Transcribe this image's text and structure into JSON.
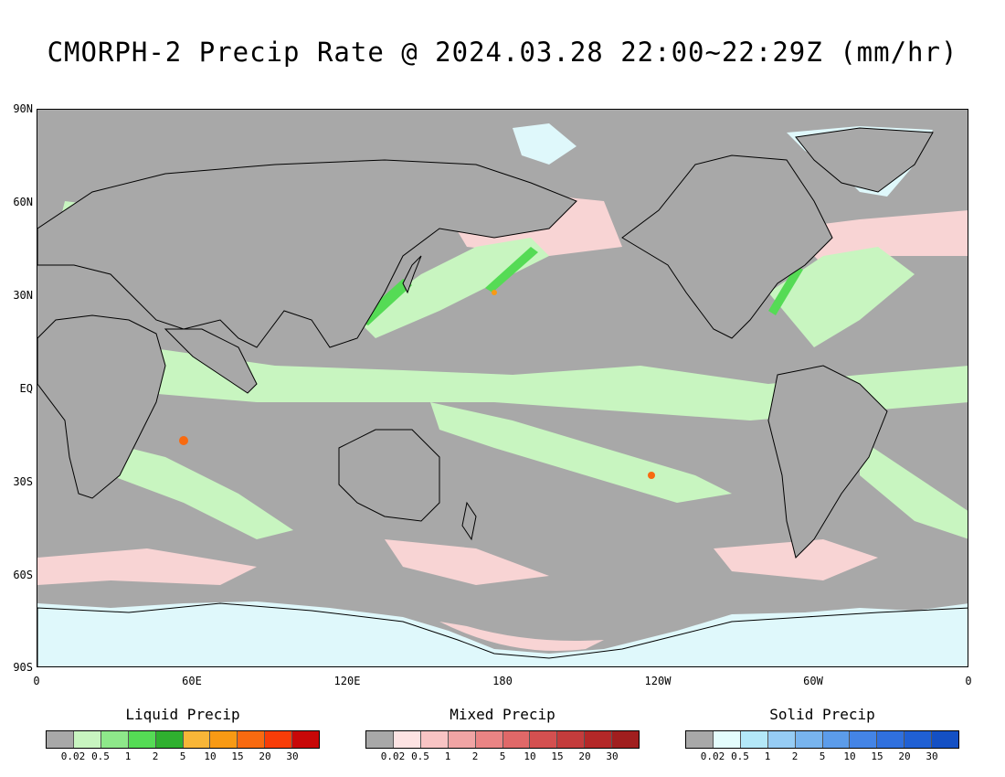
{
  "title": "CMORPH-2 Precip Rate @ 2024.03.28 22:00~22:29Z (mm/hr)",
  "map": {
    "lat_labels": [
      "90N",
      "60N",
      "30N",
      "EQ",
      "30S",
      "60S",
      "90S"
    ],
    "lon_labels": [
      "0",
      "60E",
      "120E",
      "180",
      "120W",
      "60W",
      "0"
    ],
    "colors": {
      "background": "#a8a8a8",
      "liquid_light": "#c8f5c0",
      "liquid": "#7be87a",
      "mixed": "#f8d4d4",
      "solid": "#dff8fb",
      "coast": "#000000"
    }
  },
  "legends": [
    {
      "title": "Liquid Precip",
      "colors": [
        "#a8a8a8",
        "#c8f5c0",
        "#8ee88a",
        "#55db55",
        "#2fb02f",
        "#f8b638",
        "#f89a14",
        "#f86a10",
        "#f83d08",
        "#c80808"
      ],
      "ticks": [
        "0.02",
        "0.5",
        "1",
        "2",
        "5",
        "10",
        "15",
        "20",
        "30"
      ]
    },
    {
      "title": "Mixed Precip",
      "colors": [
        "#a8a8a8",
        "#fde3e3",
        "#f8c4c4",
        "#f0a4a4",
        "#ea8484",
        "#e06868",
        "#d45050",
        "#c43c3c",
        "#b42828",
        "#a01e1e"
      ],
      "ticks": [
        "0.02",
        "0.5",
        "1",
        "2",
        "5",
        "10",
        "15",
        "20",
        "30"
      ]
    },
    {
      "title": "Solid Precip",
      "colors": [
        "#a8a8a8",
        "#e4fcfc",
        "#b4e8f8",
        "#96ccf4",
        "#78b4ee",
        "#5c9cea",
        "#4484e6",
        "#3070de",
        "#2060d4",
        "#1450c4"
      ],
      "ticks": [
        "0.02",
        "0.5",
        "1",
        "2",
        "5",
        "10",
        "15",
        "20",
        "30"
      ]
    }
  ]
}
